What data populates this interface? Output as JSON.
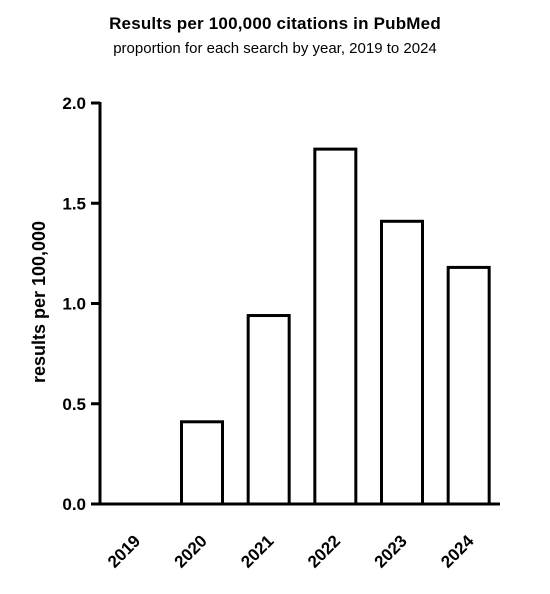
{
  "chart_data": {
    "type": "bar",
    "title": "Results per 100,000 citations in PubMed",
    "subtitle": "proportion for each search by year, 2019 to 2024",
    "ylabel": "results per 100,000",
    "xlabel": "",
    "categories": [
      "2019",
      "2020",
      "2021",
      "2022",
      "2023",
      "2024"
    ],
    "values": [
      0,
      0.41,
      0.94,
      1.77,
      1.41,
      1.18
    ],
    "ylim": [
      0,
      2.0
    ],
    "yticks": [
      "0.0",
      "0.5",
      "1.0",
      "1.5",
      "2.0"
    ],
    "grid": false,
    "bar_fill": "#ffffff",
    "bar_stroke": "#000000"
  }
}
